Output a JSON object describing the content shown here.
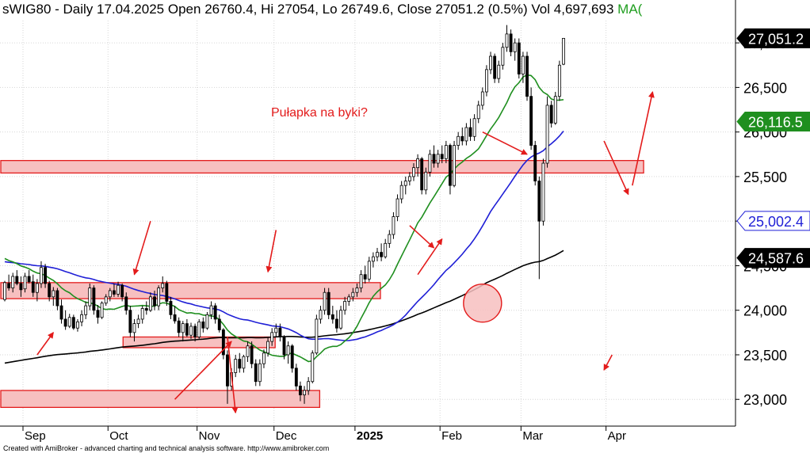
{
  "header": {
    "symbol": "sWIG80",
    "period": "Daily",
    "date": "17.04.2025",
    "open_label": "Open",
    "open": "26760.4",
    "hi_label": "Hi",
    "hi": "27054",
    "lo_label": "Lo",
    "lo": "26749.6",
    "close_label": "Close",
    "close": "27051.2",
    "change": "(0.5%)",
    "vol_label": "Vol",
    "vol": "4,697,693",
    "ma_label": "MA("
  },
  "annotation": "Pułapka na byki?",
  "footer": "Created with AmiBroker - advanced charting and technical analysis software. http://www.amibroker.com",
  "colors": {
    "candle_up": "#ffffff",
    "candle_down": "#000000",
    "ma_long": "#000000",
    "ma_mid": "#1f1fd6",
    "ma_short": "#1f8f1f",
    "zone_fill": "#f7c0c0",
    "zone_stroke": "#e31b1b",
    "arrow": "#e31b1b"
  },
  "chart_data": {
    "type": "candlestick",
    "ylim": [
      22700,
      27250
    ],
    "y_ticks": [
      "23,000",
      "23,500",
      "24,000",
      "24,500",
      "25,000",
      "25,500",
      "26,000",
      "26,500",
      "27,000"
    ],
    "y_tick_values": [
      23000,
      23500,
      24000,
      24500,
      25000,
      25500,
      26000,
      26500,
      27000
    ],
    "x_labels": [
      "Sep",
      "Oct",
      "Nov",
      "Dec",
      "2025",
      "Feb",
      "Mar",
      "Apr"
    ],
    "x_label_dates": [
      "2024-09-02",
      "2024-10-01",
      "2024-11-04",
      "2024-12-02",
      "2025-01-02",
      "2025-02-03",
      "2025-03-03",
      "2025-04-01"
    ],
    "value_badges": [
      {
        "label": "27,051.2",
        "value": 27051.2,
        "series": "close"
      },
      {
        "label": "26,116.5",
        "value": 26116.5,
        "series": "ma_short"
      },
      {
        "label": "25,002.4",
        "value": 25002.4,
        "series": "ma_mid"
      },
      {
        "label": "24,587.6",
        "value": 24587.6,
        "series": "ma_long"
      }
    ],
    "candles": [
      {
        "o": 24120,
        "h": 24330,
        "l": 24100,
        "c": 24310
      },
      {
        "o": 24300,
        "h": 24400,
        "l": 24220,
        "c": 24250
      },
      {
        "o": 24250,
        "h": 24420,
        "l": 24200,
        "c": 24380
      },
      {
        "o": 24380,
        "h": 24450,
        "l": 24280,
        "c": 24300
      },
      {
        "o": 24300,
        "h": 24380,
        "l": 24150,
        "c": 24230
      },
      {
        "o": 24240,
        "h": 24420,
        "l": 24200,
        "c": 24380
      },
      {
        "o": 24380,
        "h": 24450,
        "l": 24300,
        "c": 24320
      },
      {
        "o": 24320,
        "h": 24400,
        "l": 24150,
        "c": 24200
      },
      {
        "o": 24200,
        "h": 24350,
        "l": 24100,
        "c": 24300
      },
      {
        "o": 24300,
        "h": 24550,
        "l": 24250,
        "c": 24480
      },
      {
        "o": 24480,
        "h": 24520,
        "l": 24250,
        "c": 24300
      },
      {
        "o": 24300,
        "h": 24330,
        "l": 24100,
        "c": 24150
      },
      {
        "o": 24150,
        "h": 24260,
        "l": 24050,
        "c": 24220
      },
      {
        "o": 24220,
        "h": 24250,
        "l": 24000,
        "c": 24050
      },
      {
        "o": 24050,
        "h": 24120,
        "l": 23850,
        "c": 23900
      },
      {
        "o": 23900,
        "h": 24000,
        "l": 23780,
        "c": 23820
      },
      {
        "o": 23820,
        "h": 23960,
        "l": 23800,
        "c": 23920
      },
      {
        "o": 23920,
        "h": 23950,
        "l": 23780,
        "c": 23800
      },
      {
        "o": 23800,
        "h": 23900,
        "l": 23760,
        "c": 23870
      },
      {
        "o": 23870,
        "h": 24000,
        "l": 23820,
        "c": 23950
      },
      {
        "o": 23950,
        "h": 24100,
        "l": 23900,
        "c": 24050
      },
      {
        "o": 24050,
        "h": 24300,
        "l": 24000,
        "c": 24250
      },
      {
        "o": 24250,
        "h": 24280,
        "l": 23950,
        "c": 24000
      },
      {
        "o": 24000,
        "h": 24060,
        "l": 23850,
        "c": 23920
      },
      {
        "o": 23920,
        "h": 24100,
        "l": 23900,
        "c": 24080
      },
      {
        "o": 24080,
        "h": 24180,
        "l": 24050,
        "c": 24150
      },
      {
        "o": 24150,
        "h": 24250,
        "l": 24100,
        "c": 24220
      },
      {
        "o": 24220,
        "h": 24300,
        "l": 24150,
        "c": 24180
      },
      {
        "o": 24180,
        "h": 24320,
        "l": 24150,
        "c": 24280
      },
      {
        "o": 24280,
        "h": 24300,
        "l": 24100,
        "c": 24150
      },
      {
        "o": 24150,
        "h": 24200,
        "l": 23950,
        "c": 24000
      },
      {
        "o": 24000,
        "h": 24050,
        "l": 23700,
        "c": 23750
      },
      {
        "o": 23750,
        "h": 23900,
        "l": 23650,
        "c": 23850
      },
      {
        "o": 23850,
        "h": 23950,
        "l": 23800,
        "c": 23900
      },
      {
        "o": 23900,
        "h": 24050,
        "l": 23850,
        "c": 24020
      },
      {
        "o": 24020,
        "h": 24100,
        "l": 23950,
        "c": 24000
      },
      {
        "o": 24000,
        "h": 24200,
        "l": 23980,
        "c": 24150
      },
      {
        "o": 24150,
        "h": 24220,
        "l": 24000,
        "c": 24050
      },
      {
        "o": 24050,
        "h": 24280,
        "l": 24000,
        "c": 24250
      },
      {
        "o": 24250,
        "h": 24380,
        "l": 24200,
        "c": 24300
      },
      {
        "o": 24300,
        "h": 24330,
        "l": 24050,
        "c": 24100
      },
      {
        "o": 24100,
        "h": 24150,
        "l": 23900,
        "c": 23950
      },
      {
        "o": 23950,
        "h": 24050,
        "l": 23850,
        "c": 23880
      },
      {
        "o": 23880,
        "h": 23920,
        "l": 23700,
        "c": 23750
      },
      {
        "o": 23750,
        "h": 23880,
        "l": 23650,
        "c": 23850
      },
      {
        "o": 23850,
        "h": 23900,
        "l": 23700,
        "c": 23720
      },
      {
        "o": 23720,
        "h": 23860,
        "l": 23680,
        "c": 23820
      },
      {
        "o": 23820,
        "h": 23850,
        "l": 23650,
        "c": 23700
      },
      {
        "o": 23700,
        "h": 23900,
        "l": 23680,
        "c": 23870
      },
      {
        "o": 23870,
        "h": 23920,
        "l": 23750,
        "c": 23800
      },
      {
        "o": 23800,
        "h": 23980,
        "l": 23780,
        "c": 23950
      },
      {
        "o": 23950,
        "h": 24100,
        "l": 23900,
        "c": 24050
      },
      {
        "o": 24050,
        "h": 24080,
        "l": 23850,
        "c": 23900
      },
      {
        "o": 23900,
        "h": 23950,
        "l": 23750,
        "c": 23780
      },
      {
        "o": 23780,
        "h": 23800,
        "l": 23450,
        "c": 23500
      },
      {
        "o": 23500,
        "h": 23550,
        "l": 22950,
        "c": 23150
      },
      {
        "o": 23150,
        "h": 23350,
        "l": 23100,
        "c": 23300
      },
      {
        "o": 23300,
        "h": 23500,
        "l": 23250,
        "c": 23450
      },
      {
        "o": 23450,
        "h": 23520,
        "l": 23300,
        "c": 23350
      },
      {
        "o": 23350,
        "h": 23500,
        "l": 23300,
        "c": 23480
      },
      {
        "o": 23480,
        "h": 23650,
        "l": 23420,
        "c": 23600
      },
      {
        "o": 23600,
        "h": 23650,
        "l": 23350,
        "c": 23400
      },
      {
        "o": 23400,
        "h": 23450,
        "l": 23150,
        "c": 23200
      },
      {
        "o": 23200,
        "h": 23450,
        "l": 23150,
        "c": 23400
      },
      {
        "o": 23400,
        "h": 23560,
        "l": 23350,
        "c": 23520
      },
      {
        "o": 23520,
        "h": 23700,
        "l": 23480,
        "c": 23650
      },
      {
        "o": 23650,
        "h": 23800,
        "l": 23600,
        "c": 23750
      },
      {
        "o": 23750,
        "h": 23850,
        "l": 23700,
        "c": 23800
      },
      {
        "o": 23800,
        "h": 23850,
        "l": 23650,
        "c": 23700
      },
      {
        "o": 23700,
        "h": 23720,
        "l": 23450,
        "c": 23500
      },
      {
        "o": 23500,
        "h": 23650,
        "l": 23400,
        "c": 23600
      },
      {
        "o": 23600,
        "h": 23620,
        "l": 23300,
        "c": 23350
      },
      {
        "o": 23350,
        "h": 23400,
        "l": 23100,
        "c": 23150
      },
      {
        "o": 23150,
        "h": 23200,
        "l": 22980,
        "c": 23050
      },
      {
        "o": 23050,
        "h": 23150,
        "l": 22950,
        "c": 23100
      },
      {
        "o": 23100,
        "h": 23250,
        "l": 23050,
        "c": 23200
      },
      {
        "o": 23200,
        "h": 23550,
        "l": 23180,
        "c": 23520
      },
      {
        "o": 23520,
        "h": 23950,
        "l": 23500,
        "c": 23900
      },
      {
        "o": 23900,
        "h": 24050,
        "l": 23850,
        "c": 24000
      },
      {
        "o": 24000,
        "h": 24250,
        "l": 23950,
        "c": 24200
      },
      {
        "o": 24200,
        "h": 24250,
        "l": 23900,
        "c": 23950
      },
      {
        "o": 23950,
        "h": 24050,
        "l": 23850,
        "c": 23900
      },
      {
        "o": 23900,
        "h": 24000,
        "l": 23750,
        "c": 23800
      },
      {
        "o": 23800,
        "h": 24050,
        "l": 23780,
        "c": 24000
      },
      {
        "o": 24000,
        "h": 24150,
        "l": 23950,
        "c": 24100
      },
      {
        "o": 24100,
        "h": 24180,
        "l": 24050,
        "c": 24150
      },
      {
        "o": 24150,
        "h": 24250,
        "l": 24100,
        "c": 24200
      },
      {
        "o": 24200,
        "h": 24300,
        "l": 24150,
        "c": 24250
      },
      {
        "o": 24250,
        "h": 24450,
        "l": 24200,
        "c": 24400
      },
      {
        "o": 24400,
        "h": 24500,
        "l": 24300,
        "c": 24350
      },
      {
        "o": 24350,
        "h": 24600,
        "l": 24320,
        "c": 24550
      },
      {
        "o": 24550,
        "h": 24650,
        "l": 24480,
        "c": 24600
      },
      {
        "o": 24600,
        "h": 24700,
        "l": 24550,
        "c": 24650
      },
      {
        "o": 24650,
        "h": 24750,
        "l": 24550,
        "c": 24600
      },
      {
        "o": 24600,
        "h": 24800,
        "l": 24580,
        "c": 24750
      },
      {
        "o": 24750,
        "h": 24900,
        "l": 24700,
        "c": 24850
      },
      {
        "o": 24850,
        "h": 25100,
        "l": 24800,
        "c": 25050
      },
      {
        "o": 25050,
        "h": 25300,
        "l": 25000,
        "c": 25250
      },
      {
        "o": 25250,
        "h": 25450,
        "l": 25200,
        "c": 25400
      },
      {
        "o": 25400,
        "h": 25500,
        "l": 25300,
        "c": 25450
      },
      {
        "o": 25450,
        "h": 25550,
        "l": 25400,
        "c": 25500
      },
      {
        "o": 25500,
        "h": 25650,
        "l": 25450,
        "c": 25600
      },
      {
        "o": 25600,
        "h": 25750,
        "l": 25500,
        "c": 25700
      },
      {
        "o": 25700,
        "h": 25720,
        "l": 25300,
        "c": 25350
      },
      {
        "o": 25350,
        "h": 25600,
        "l": 25300,
        "c": 25550
      },
      {
        "o": 25550,
        "h": 25800,
        "l": 25500,
        "c": 25750
      },
      {
        "o": 25750,
        "h": 25850,
        "l": 25600,
        "c": 25650
      },
      {
        "o": 25650,
        "h": 25800,
        "l": 25600,
        "c": 25750
      },
      {
        "o": 25750,
        "h": 25850,
        "l": 25650,
        "c": 25700
      },
      {
        "o": 25700,
        "h": 25900,
        "l": 25650,
        "c": 25850
      },
      {
        "o": 25850,
        "h": 25870,
        "l": 25300,
        "c": 25400
      },
      {
        "o": 25400,
        "h": 25900,
        "l": 25380,
        "c": 25850
      },
      {
        "o": 25850,
        "h": 26000,
        "l": 25800,
        "c": 25950
      },
      {
        "o": 25950,
        "h": 26050,
        "l": 25850,
        "c": 25900
      },
      {
        "o": 25900,
        "h": 26100,
        "l": 25850,
        "c": 26050
      },
      {
        "o": 26050,
        "h": 26150,
        "l": 25900,
        "c": 25950
      },
      {
        "o": 25950,
        "h": 26200,
        "l": 25900,
        "c": 26150
      },
      {
        "o": 26150,
        "h": 26350,
        "l": 26100,
        "c": 26300
      },
      {
        "o": 26300,
        "h": 26500,
        "l": 26250,
        "c": 26450
      },
      {
        "o": 26450,
        "h": 26750,
        "l": 26400,
        "c": 26700
      },
      {
        "o": 26700,
        "h": 26900,
        "l": 26650,
        "c": 26850
      },
      {
        "o": 26850,
        "h": 26880,
        "l": 26550,
        "c": 26600
      },
      {
        "o": 26600,
        "h": 26800,
        "l": 26550,
        "c": 26750
      },
      {
        "o": 26750,
        "h": 27000,
        "l": 26700,
        "c": 26950
      },
      {
        "o": 26950,
        "h": 27200,
        "l": 26900,
        "c": 27100
      },
      {
        "o": 27100,
        "h": 27150,
        "l": 26850,
        "c": 26900
      },
      {
        "o": 26900,
        "h": 27050,
        "l": 26800,
        "c": 27000
      },
      {
        "o": 27000,
        "h": 27050,
        "l": 26600,
        "c": 26650
      },
      {
        "o": 26650,
        "h": 26900,
        "l": 26550,
        "c": 26850
      },
      {
        "o": 26850,
        "h": 26900,
        "l": 26350,
        "c": 26400
      },
      {
        "o": 26400,
        "h": 26500,
        "l": 25800,
        "c": 25850
      },
      {
        "o": 25850,
        "h": 25900,
        "l": 25400,
        "c": 25450
      },
      {
        "o": 25450,
        "h": 25500,
        "l": 24350,
        "c": 25000
      },
      {
        "o": 25000,
        "h": 25700,
        "l": 24950,
        "c": 25650
      },
      {
        "o": 25650,
        "h": 26400,
        "l": 25600,
        "c": 26300
      },
      {
        "o": 26300,
        "h": 26350,
        "l": 26050,
        "c": 26100
      },
      {
        "o": 26100,
        "h": 26450,
        "l": 26080,
        "c": 26400
      },
      {
        "o": 26400,
        "h": 26800,
        "l": 26350,
        "c": 26750
      },
      {
        "o": 26760.4,
        "h": 27054,
        "l": 26749.6,
        "c": 27051.2
      }
    ]
  }
}
